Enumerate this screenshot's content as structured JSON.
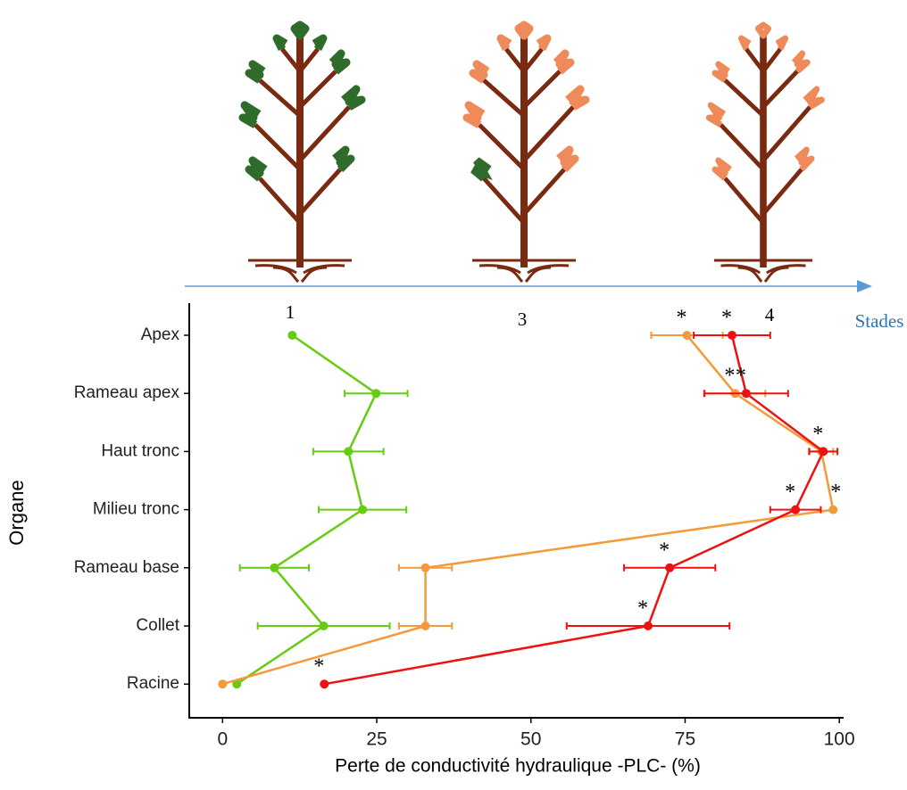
{
  "chart_data": {
    "type": "dot-line",
    "x_label": "Perte de conductivité hydraulique -PLC- (%)",
    "y_label": "Organe",
    "stage_axis_label": "Stades",
    "marker_label": "*",
    "categories": [
      "Apex",
      "Rameau apex",
      "Haut tronc",
      "Milieu tronc",
      "Rameau base",
      "Collet",
      "Racine"
    ],
    "xlim": [
      -5.4,
      100.7
    ],
    "xticks": [
      0,
      25,
      50,
      75,
      100
    ],
    "series": [
      {
        "name": "1",
        "color": "#66cc11",
        "values": [
          11.3,
          24.9,
          20.4,
          22.7,
          8.4,
          16.4,
          2.3
        ],
        "errors": [
          null,
          5.1,
          5.7,
          7.1,
          5.6,
          10.7,
          null
        ],
        "significant": [
          false,
          false,
          false,
          false,
          false,
          false,
          false
        ]
      },
      {
        "name": "3",
        "color": "#f59a3a",
        "values": [
          75.3,
          83.1,
          97.1,
          99.0,
          32.9,
          32.9,
          0
        ],
        "errors": [
          5.8,
          4.9,
          1.9,
          null,
          4.3,
          4.3,
          null
        ],
        "significant": [
          true,
          true,
          false,
          true,
          false,
          false,
          false
        ]
      },
      {
        "name": "4",
        "color": "#ee1111",
        "values": [
          82.6,
          84.9,
          97.4,
          92.9,
          72.5,
          69.0,
          16.5
        ],
        "errors": [
          6.2,
          6.8,
          2.3,
          4.1,
          7.4,
          13.2,
          null
        ],
        "significant": [
          true,
          true,
          true,
          true,
          true,
          true,
          true
        ]
      }
    ]
  }
}
